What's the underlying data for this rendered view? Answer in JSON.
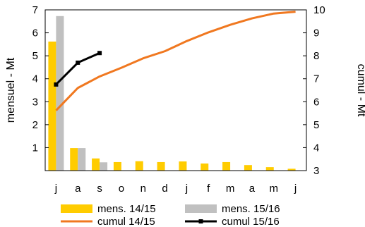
{
  "chart_data": {
    "type": "bar",
    "categories": [
      "j",
      "a",
      "s",
      "o",
      "n",
      "d",
      "j",
      "f",
      "m",
      "a",
      "m",
      "j"
    ],
    "ylabel_left": "mensuel - Mt",
    "ylabel_right": "cumul - Mt",
    "ylim_left": [
      0,
      7
    ],
    "yticks_left": [
      "1",
      "2",
      "3",
      "4",
      "5",
      "6",
      "7"
    ],
    "ylim_right": [
      3,
      10
    ],
    "yticks_right": [
      "3",
      "4",
      "5",
      "6",
      "7",
      "8",
      "9",
      "10"
    ],
    "grid": false,
    "legend_position": "bottom",
    "bar_series": [
      {
        "name": "mens. 14/15",
        "color": "#FFCC00",
        "axis": "left",
        "values": [
          5.62,
          0.98,
          0.53,
          0.37,
          0.41,
          0.37,
          0.4,
          0.31,
          0.37,
          0.24,
          0.15,
          0.08
        ]
      },
      {
        "name": "mens. 15/16",
        "color": "#C0C0C0",
        "axis": "left",
        "values": [
          6.73,
          0.98,
          0.36
        ]
      }
    ],
    "line_series": [
      {
        "name": "cumul 14/15",
        "color": "#F07820",
        "axis": "right",
        "marker": "none",
        "values": [
          5.62,
          6.6,
          7.1,
          7.48,
          7.89,
          8.2,
          8.64,
          9.02,
          9.35,
          9.63,
          9.84,
          9.92
        ]
      },
      {
        "name": "cumul 15/16",
        "color": "#000000",
        "axis": "right",
        "marker": "square",
        "values": [
          6.75,
          7.7,
          8.12
        ]
      }
    ]
  }
}
